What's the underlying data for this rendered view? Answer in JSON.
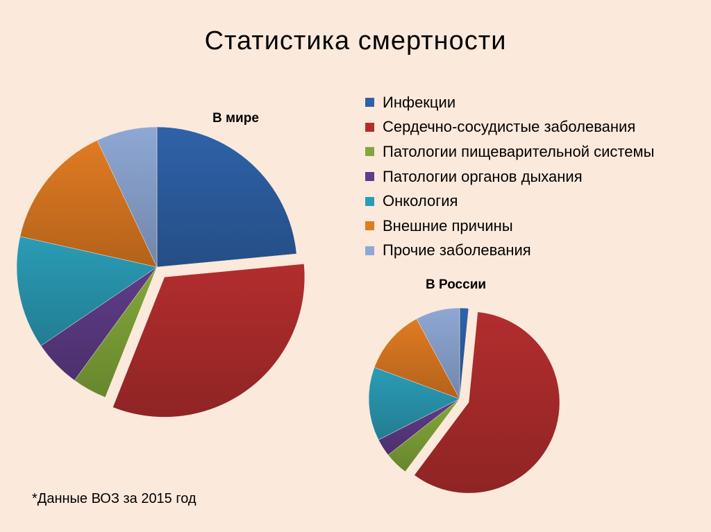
{
  "title": "Статистика смертности",
  "footnote": "*Данные ВОЗ за 2015 год",
  "colors": {
    "background": "#fbe9dc",
    "series": [
      "#2e62a8",
      "#b32d2d",
      "#82a83a",
      "#5f3c88",
      "#2a9cb6",
      "#e07b22",
      "#8ea8d4"
    ]
  },
  "chart_data": [
    {
      "type": "pie",
      "title": "В мире",
      "categories": [
        "Инфекции",
        "Сердечно-сосудистые заболевания",
        "Патологии пищеварительной системы",
        "Патологии органов дыхания",
        "Онкология",
        "Внешние причины",
        "Прочие заболевания"
      ],
      "values": [
        23.5,
        32.5,
        4,
        5.5,
        13,
        14.5,
        7
      ],
      "exploded": "Сердечно-сосудистые заболевания",
      "legend": "top-right"
    },
    {
      "type": "pie",
      "title": "В России",
      "categories": [
        "Инфекции",
        "Сердечно-сосудистые заболевания",
        "Патологии пищеварительной системы",
        "Патологии органов дыхания",
        "Онкология",
        "Внешние причины",
        "Прочие заболевания"
      ],
      "values": [
        1.5,
        56,
        4,
        3,
        12.5,
        11,
        7.5
      ],
      "exploded": "Сердечно-сосудистые заболевания"
    }
  ]
}
